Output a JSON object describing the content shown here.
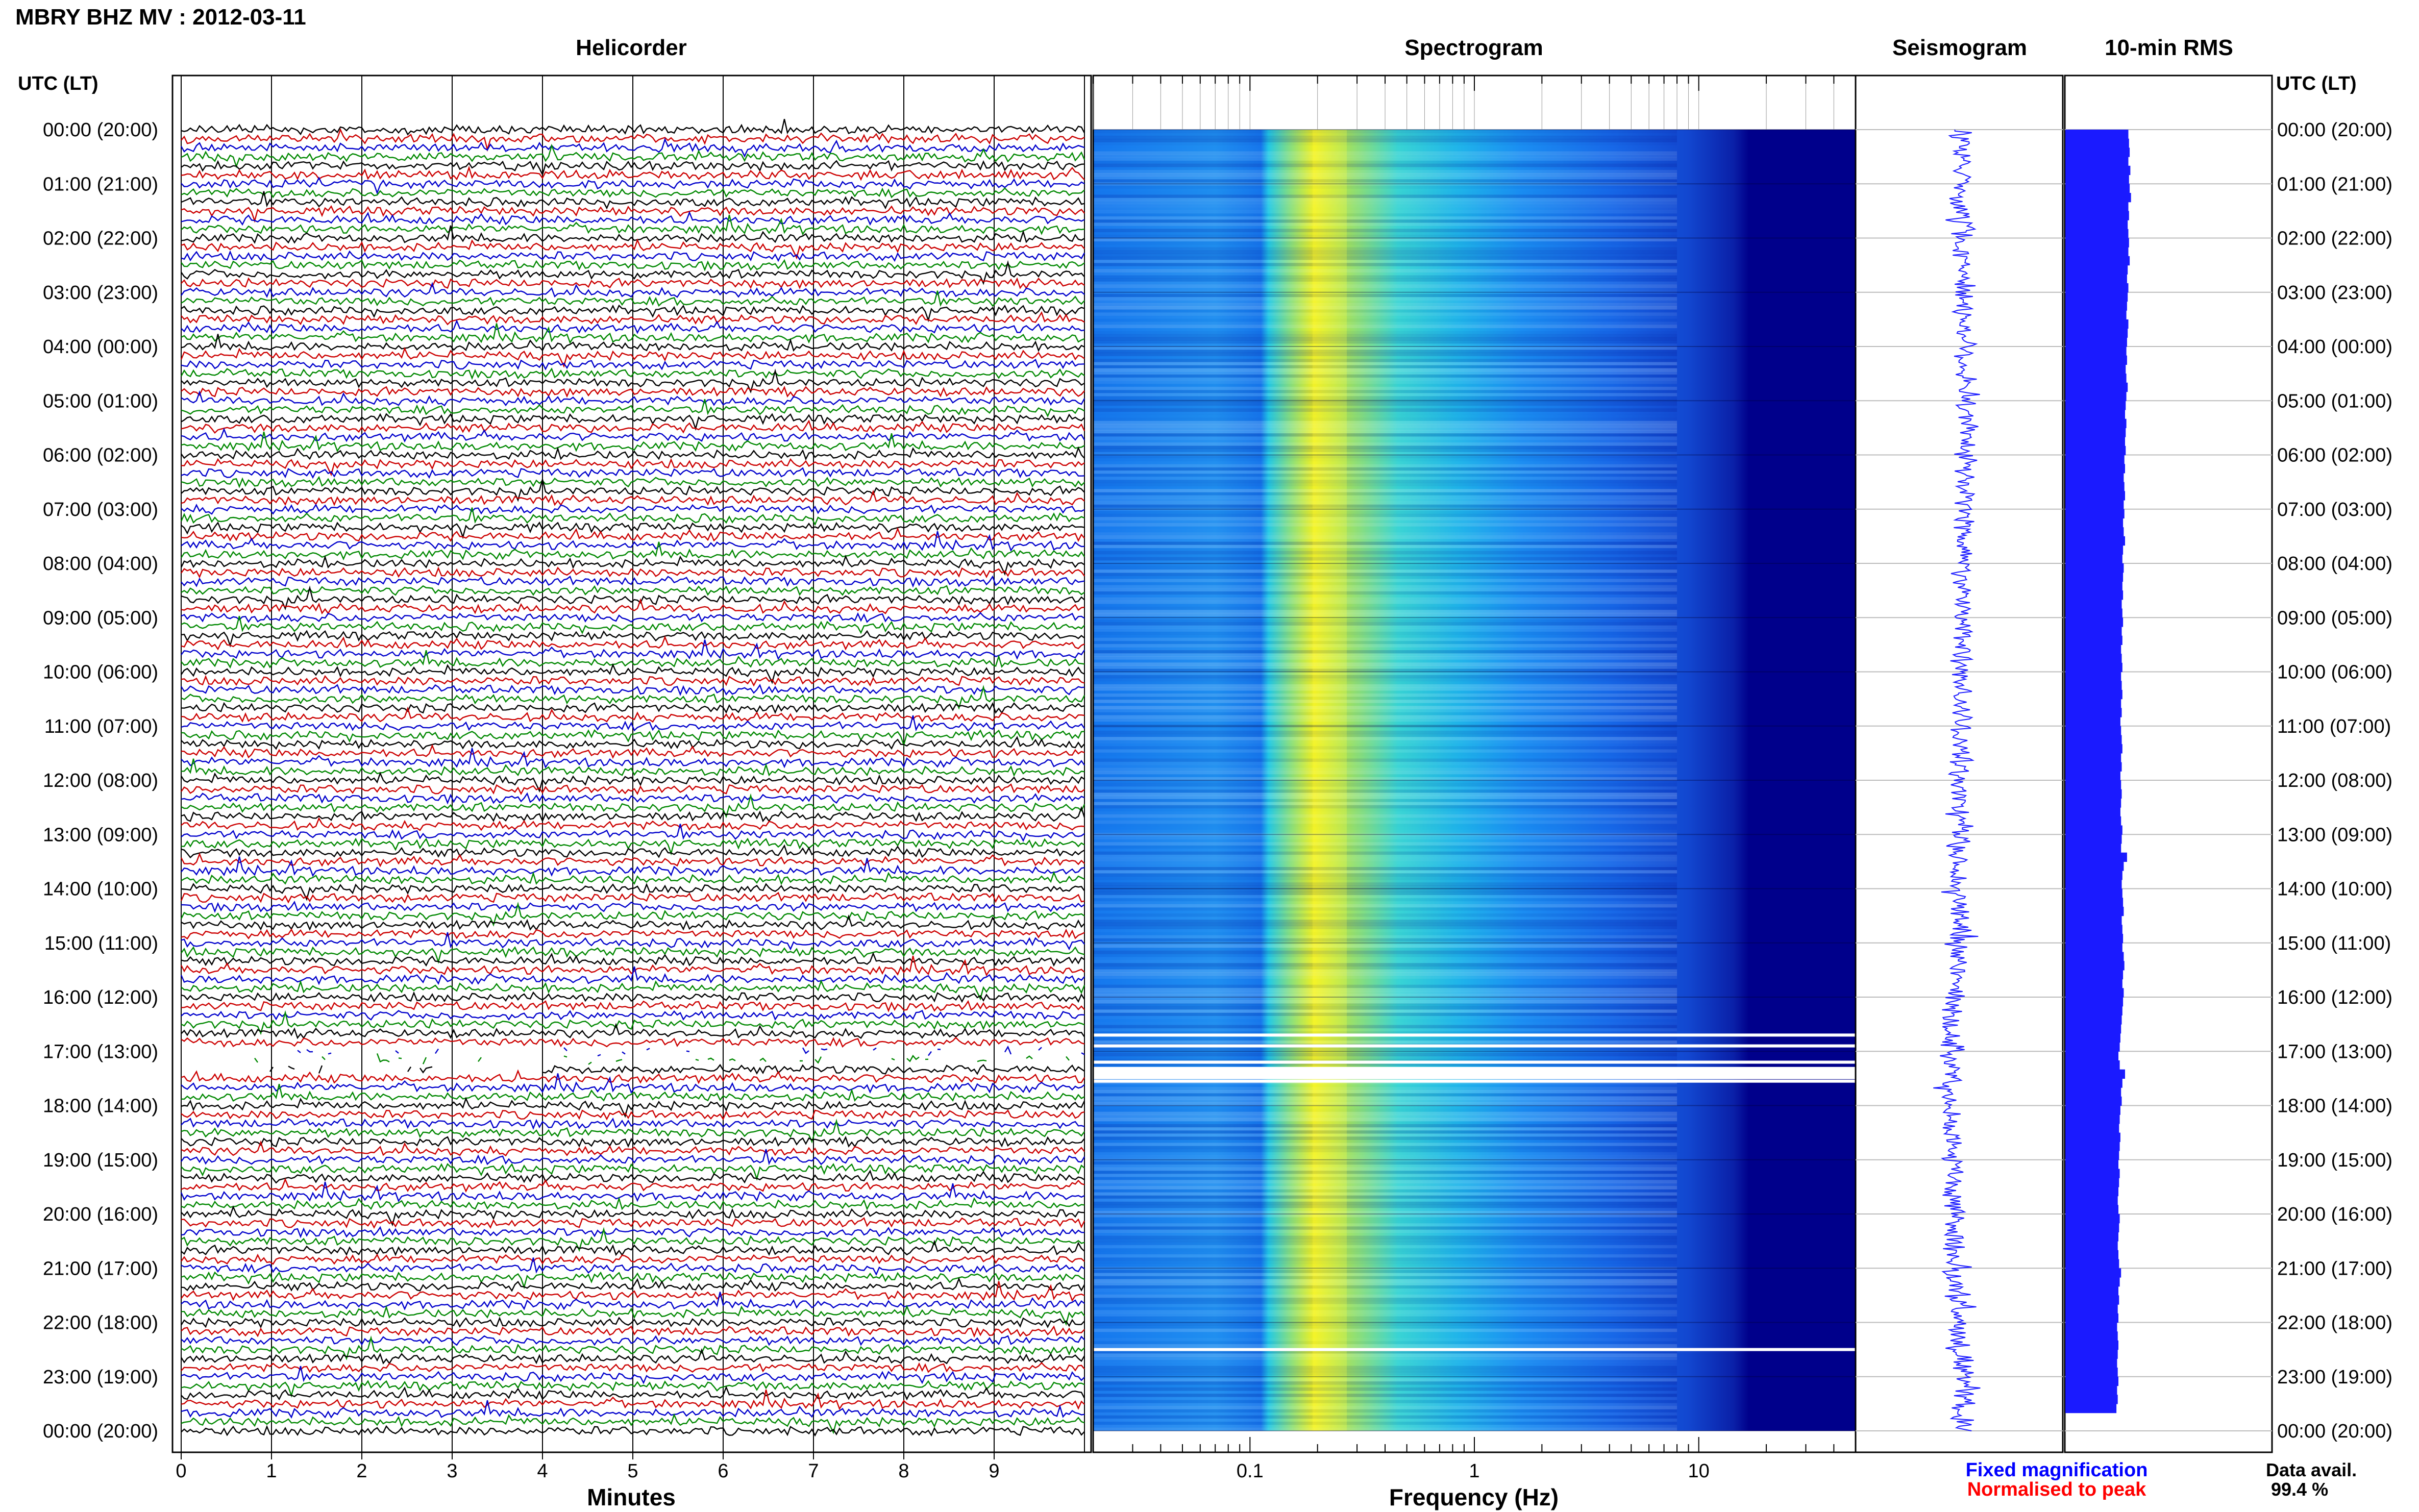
{
  "header": {
    "station_title": "MBRY BHZ MV : 2012-03-11",
    "panel_helicorder": "Helicorder",
    "panel_spectrogram": "Spectrogram",
    "panel_seismogram": "Seismogram",
    "panel_rms": "10-min RMS",
    "utc_left": "UTC (LT)",
    "utc_right": "UTC (LT)"
  },
  "footer": {
    "minutes_label": "Minutes",
    "frequency_label": "Frequency (Hz)",
    "fixed_magnification": "Fixed magnification",
    "normalised_to_peak": "Normalised to peak",
    "data_avail_label": "Data avail.",
    "data_avail_value": "99.4 %"
  },
  "colors": {
    "fixed_magnification": "#0000ff",
    "normalised_to_peak": "#ff0000",
    "trace_cycle": [
      "#000000",
      "#cc0000",
      "#0000cc",
      "#008800"
    ],
    "spectrogram_high": "#ffff00",
    "spectrogram_low": "#00008b",
    "seismogram": "#1a1aff",
    "rms": "#1a1aff"
  },
  "chart_data": [
    {
      "type": "line",
      "name": "helicorder",
      "title": "Helicorder",
      "xlabel": "Minutes",
      "x_ticks": [
        "0",
        "1",
        "2",
        "3",
        "4",
        "5",
        "6",
        "7",
        "8",
        "9"
      ],
      "xlim": [
        0,
        10
      ],
      "rows_per_hour": 6,
      "hours": 24,
      "y_tick_labels": [
        "00:00 (20:00)",
        "01:00 (21:00)",
        "02:00 (22:00)",
        "03:00 (23:00)",
        "04:00 (00:00)",
        "05:00 (01:00)",
        "06:00 (02:00)",
        "07:00 (03:00)",
        "08:00 (04:00)",
        "09:00 (05:00)",
        "10:00 (06:00)",
        "11:00 (07:00)",
        "12:00 (08:00)",
        "13:00 (09:00)",
        "14:00 (10:00)",
        "15:00 (11:00)",
        "16:00 (12:00)",
        "17:00 (13:00)",
        "18:00 (14:00)",
        "19:00 (15:00)",
        "20:00 (16:00)",
        "21:00 (17:00)",
        "22:00 (18:00)",
        "23:00 (19:00)",
        "00:00 (20:00)"
      ],
      "gap_utc_hours": [
        17.0,
        17.4
      ]
    },
    {
      "type": "heatmap",
      "name": "spectrogram",
      "title": "Spectrogram",
      "xlabel": "Frequency (Hz)",
      "x_scale": "log",
      "xlim": [
        0.02,
        50
      ],
      "x_tick_labels": [
        "0.1",
        "1",
        "10"
      ],
      "x_tick_values": [
        0.1,
        1,
        10
      ],
      "peak_frequency_hz": 0.22,
      "gap_utc_hours": [
        16.7,
        16.9,
        17.2,
        17.4,
        17.55,
        22.5
      ]
    },
    {
      "type": "line",
      "name": "seismogram",
      "title": "Seismogram"
    },
    {
      "type": "bar",
      "name": "rms",
      "title": "10-min RMS",
      "orientation": "horizontal",
      "bins_per_hour": 6,
      "relative_values": [
        0.95,
        0.96,
        0.97,
        0.95,
        0.98,
        0.96,
        0.97,
        0.99,
        0.95,
        0.96,
        0.94,
        0.95,
        0.96,
        0.95,
        0.97,
        0.94,
        0.93,
        0.95,
        0.94,
        0.93,
        0.92,
        0.95,
        0.94,
        0.93,
        0.92,
        0.93,
        0.91,
        0.92,
        0.94,
        0.92,
        0.91,
        0.9,
        0.92,
        0.91,
        0.9,
        0.91,
        0.89,
        0.9,
        0.88,
        0.89,
        0.9,
        0.88,
        0.89,
        0.87,
        0.88,
        0.9,
        0.87,
        0.86,
        0.88,
        0.87,
        0.86,
        0.87,
        0.85,
        0.86,
        0.87,
        0.85,
        0.86,
        0.84,
        0.85,
        0.86,
        0.84,
        0.85,
        0.86,
        0.84,
        0.85,
        0.83,
        0.84,
        0.85,
        0.86,
        0.84,
        0.85,
        0.83,
        0.84,
        0.85,
        0.84,
        0.83,
        0.84,
        0.86,
        0.85,
        0.84,
        0.93,
        0.88,
        0.86,
        0.85,
        0.86,
        0.87,
        0.88,
        0.85,
        0.86,
        0.87,
        0.86,
        0.88,
        0.89,
        0.87,
        0.86,
        0.88,
        0.87,
        0.86,
        0.85,
        0.84,
        0.83,
        0.82,
        0.8,
        0.82,
        0.9,
        0.86,
        0.84,
        0.85,
        0.83,
        0.82,
        0.81,
        0.83,
        0.82,
        0.81,
        0.8,
        0.82,
        0.81,
        0.8,
        0.79,
        0.8,
        0.82,
        0.81,
        0.8,
        0.79,
        0.8,
        0.81,
        0.84,
        0.82,
        0.8,
        0.81,
        0.79,
        0.8,
        0.78,
        0.79,
        0.8,
        0.79,
        0.78,
        0.79,
        0.8,
        0.78,
        0.79,
        0.77
      ]
    }
  ]
}
